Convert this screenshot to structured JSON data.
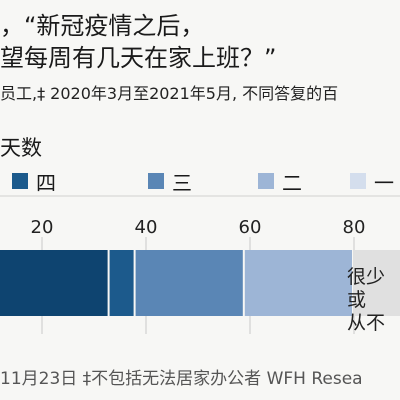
{
  "header": {
    "title_line1": "，“新冠疫情之后，",
    "title_line2": "望每周有几天在家上班？”",
    "subtitle": "员工,‡ 2020年3月至2021年5月, 不同答复的百"
  },
  "legend": {
    "heading": "天数",
    "items": [
      {
        "label": "四",
        "color": "#1c5a8c"
      },
      {
        "label": "三",
        "color": "#5a86b5"
      },
      {
        "label": "二",
        "color": "#9db5d6"
      },
      {
        "label": "一",
        "color": "#d4deed"
      }
    ]
  },
  "chart_data": {
    "type": "bar",
    "orientation": "horizontal",
    "stacked": true,
    "xlim": [
      0,
      100
    ],
    "x_ticks": [
      "20",
      "40",
      "60",
      "80"
    ],
    "grid": true,
    "segments": [
      {
        "value": 33,
        "color": "#0e4470"
      },
      {
        "value": 5,
        "color": "#1c5a8c"
      },
      {
        "value": 21,
        "color": "#5a86b5"
      },
      {
        "value": 21,
        "color": "#9db5d6"
      },
      {
        "value": 20,
        "color": "#e0e0e0",
        "label_line1": "很少或",
        "label_line2": "从不"
      }
    ]
  },
  "footer": {
    "text": "11月23日  ‡不包括无法居家办公者  WFH Resea"
  }
}
